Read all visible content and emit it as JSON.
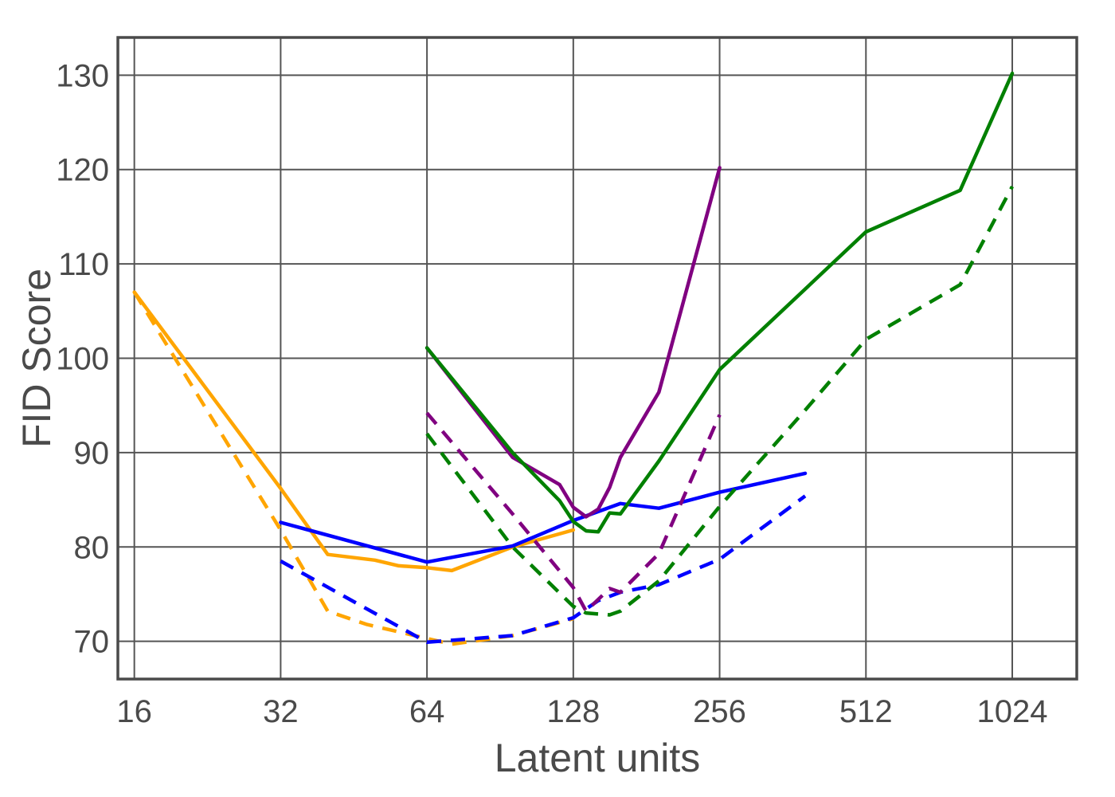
{
  "chart_data": {
    "type": "line",
    "xlabel": "Latent units",
    "ylabel": "FID Score",
    "x_scale": "log2",
    "xlim": [
      14.8,
      1390
    ],
    "ylim": [
      66,
      134
    ],
    "x_ticks": [
      16,
      32,
      64,
      128,
      256,
      512,
      1024
    ],
    "y_ticks": [
      70,
      80,
      90,
      100,
      110,
      120,
      130
    ],
    "grid": true,
    "series": [
      {
        "color": "#ffa500",
        "dash": false,
        "x": [
          16,
          32,
          40,
          50,
          56,
          64,
          72,
          96,
          128
        ],
        "y": [
          107,
          86.2,
          79.2,
          78.6,
          78.0,
          77.8,
          77.5,
          80.0,
          81.8
        ]
      },
      {
        "color": "#ffa500",
        "dash": true,
        "x": [
          16,
          32,
          40,
          48,
          64,
          72,
          96,
          128
        ],
        "y": [
          107,
          81.8,
          73.2,
          71.8,
          70.3,
          69.7,
          70.6,
          72.4
        ]
      },
      {
        "color": "#0000ff",
        "dash": false,
        "x": [
          32,
          64,
          96,
          128,
          160,
          192,
          256,
          384
        ],
        "y": [
          82.6,
          78.4,
          80.1,
          82.8,
          84.6,
          84.1,
          85.8,
          87.8
        ]
      },
      {
        "color": "#0000ff",
        "dash": true,
        "x": [
          32,
          64,
          96,
          128,
          144,
          160,
          192,
          256,
          384
        ],
        "y": [
          78.5,
          69.9,
          70.6,
          72.5,
          74.3,
          75.2,
          76.0,
          78.7,
          85.4
        ]
      },
      {
        "color": "#800080",
        "dash": false,
        "x": [
          64,
          96,
          120,
          128,
          136,
          144,
          152,
          160,
          192,
          256
        ],
        "y": [
          101.1,
          89.5,
          86.6,
          84.2,
          83.2,
          84.0,
          86.3,
          89.5,
          96.4,
          120.2
        ]
      },
      {
        "color": "#800080",
        "dash": true,
        "x": [
          64,
          96,
          128,
          136,
          152,
          160,
          192,
          256
        ],
        "y": [
          94.2,
          83.5,
          75.7,
          73.2,
          75.6,
          75.2,
          79.3,
          94.0
        ]
      },
      {
        "color": "#008000",
        "dash": false,
        "x": [
          64,
          96,
          120,
          128,
          136,
          144,
          152,
          160,
          192,
          256,
          512,
          800,
          1024
        ],
        "y": [
          101.1,
          90.0,
          84.9,
          82.7,
          81.7,
          81.6,
          83.6,
          83.5,
          89.1,
          98.8,
          113.4,
          117.8,
          130.2
        ]
      },
      {
        "color": "#008000",
        "dash": true,
        "x": [
          64,
          96,
          128,
          136,
          152,
          160,
          192,
          256,
          384,
          512,
          800,
          1024
        ],
        "y": [
          92.0,
          80.0,
          73.7,
          73.0,
          72.8,
          73.2,
          76.4,
          84.3,
          94.5,
          102.0,
          107.8,
          118.2
        ]
      }
    ]
  }
}
